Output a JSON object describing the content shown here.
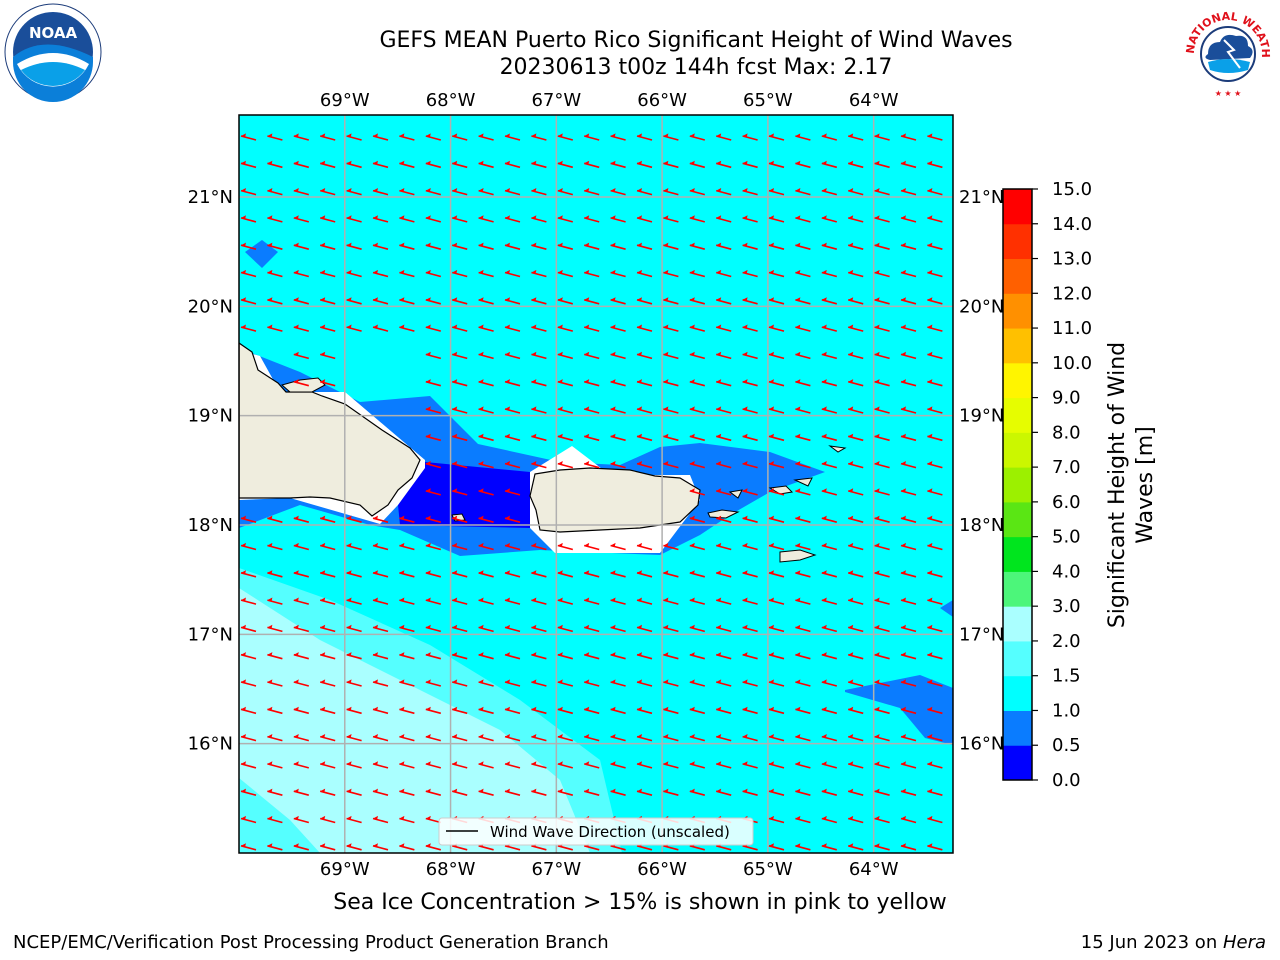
{
  "header": {
    "title_line1": "GEFS MEAN Puerto Rico Significant Height of Wind Waves",
    "title_line2": "20230613 t00z 144h fcst   Max: 2.17"
  },
  "map": {
    "lon_ticks": [
      "69°W",
      "68°W",
      "67°W",
      "66°W",
      "65°W",
      "64°W"
    ],
    "lat_ticks": [
      "21°N",
      "20°N",
      "19°N",
      "18°N",
      "17°N",
      "16°N"
    ],
    "lon_range": [
      -70.0,
      -63.25
    ],
    "lat_range": [
      15.0,
      21.75
    ],
    "legend_label": "Wind Wave Direction (unscaled)",
    "arrow_color": "#ff0000",
    "land_color": "#efedde"
  },
  "colorbar": {
    "label": "Significant Height of Wind Waves [m]",
    "label_line1": "Significant Height of Wind",
    "label_line2": "Waves [m]",
    "tick_labels": [
      "0.0",
      "0.5",
      "1.0",
      "1.5",
      "2.0",
      "3.0",
      "4.0",
      "5.0",
      "6.0",
      "7.0",
      "8.0",
      "9.0",
      "10.0",
      "11.0",
      "12.0",
      "13.0",
      "14.0",
      "15.0"
    ],
    "colors": [
      "#0000ff",
      "#0a7cff",
      "#00ffff",
      "#55ffff",
      "#aaffff",
      "#4cf67a",
      "#00e51e",
      "#5ae614",
      "#9cf000",
      "#cbf700",
      "#e6fd00",
      "#fff500",
      "#ffc000",
      "#ff9000",
      "#ff6000",
      "#ff3000",
      "#ff0000"
    ]
  },
  "chart_data": {
    "type": "heatmap",
    "title": "GEFS MEAN Puerto Rico Significant Height of Wind Waves",
    "subtitle": "20230613 t00z 144h fcst   Max: 2.17",
    "max_value": 2.17,
    "units": "m",
    "wave_direction": "westward (from east-southeast)"
  },
  "ice_note": "Sea Ice Concentration > 15% is shown in pink to yellow",
  "footer": {
    "left": "NCEP/EMC/Verification Post Processing Product Generation Branch",
    "date": "15 Jun 2023 on ",
    "host": "Hera"
  },
  "logos": {
    "noaa_text": "NOAA",
    "nws_text": "NATIONAL WEATHER SERVICE"
  }
}
